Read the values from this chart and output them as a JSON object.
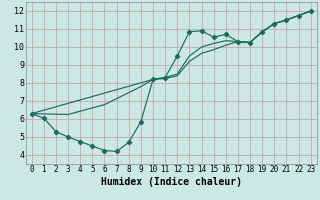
{
  "xlabel": "Humidex (Indice chaleur)",
  "xlim": [
    -0.5,
    23.5
  ],
  "ylim": [
    3.5,
    12.5
  ],
  "xticks": [
    0,
    1,
    2,
    3,
    4,
    5,
    6,
    7,
    8,
    9,
    10,
    11,
    12,
    13,
    14,
    15,
    16,
    17,
    18,
    19,
    20,
    21,
    22,
    23
  ],
  "yticks": [
    4,
    5,
    6,
    7,
    8,
    9,
    10,
    11,
    12
  ],
  "bg_color": "#cce8e4",
  "grid_color": "#c8a8a8",
  "line_color": "#1a6b60",
  "line1_x": [
    0,
    1,
    2,
    3,
    4,
    5,
    6,
    7,
    8,
    9,
    10,
    11,
    12,
    13,
    14,
    15,
    16,
    17,
    18,
    19,
    20,
    21,
    22,
    23
  ],
  "line1_y": [
    6.3,
    6.05,
    5.3,
    5.0,
    4.75,
    4.5,
    4.25,
    4.2,
    4.7,
    5.85,
    8.2,
    8.3,
    9.5,
    10.85,
    10.9,
    10.55,
    10.7,
    10.3,
    10.25,
    10.85,
    11.3,
    11.5,
    11.75,
    12.0
  ],
  "line2_x": [
    0,
    3,
    6,
    9,
    10,
    11,
    12,
    13,
    14,
    15,
    16,
    17,
    18,
    19,
    20,
    21,
    22,
    23
  ],
  "line2_y": [
    6.3,
    6.25,
    6.8,
    7.8,
    8.2,
    8.25,
    8.4,
    9.2,
    9.65,
    9.85,
    10.1,
    10.3,
    10.25,
    10.85,
    11.3,
    11.5,
    11.75,
    12.0
  ],
  "line3_x": [
    0,
    10,
    11,
    12,
    13,
    14,
    15,
    16,
    17,
    18,
    19,
    20,
    21,
    22,
    23
  ],
  "line3_y": [
    6.3,
    8.2,
    8.3,
    8.5,
    9.5,
    10.0,
    10.2,
    10.35,
    10.3,
    10.25,
    10.85,
    11.3,
    11.5,
    11.75,
    12.0
  ]
}
